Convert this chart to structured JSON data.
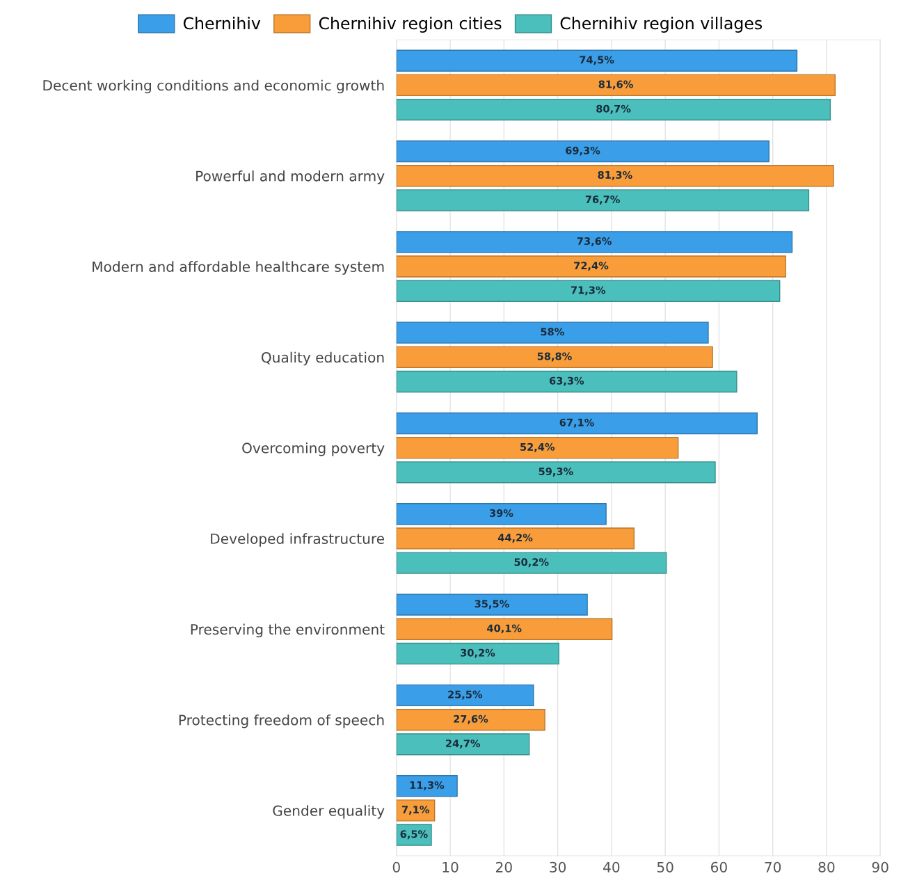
{
  "chart_data": {
    "type": "bar",
    "orientation": "horizontal",
    "categories": [
      "Decent working conditions and economic growth",
      "Powerful and modern army",
      "Modern and affordable healthcare system",
      "Quality education",
      "Overcoming poverty",
      "Developed infrastructure",
      "Preserving the environment",
      "Protecting freedom of speech",
      "Gender equality"
    ],
    "series": [
      {
        "name": "Chernihiv",
        "color": "#3a9fe8",
        "values": [
          74.5,
          69.3,
          73.6,
          58,
          67.1,
          39,
          35.5,
          25.5,
          11.3
        ],
        "value_labels": [
          "74,5%",
          "69,3%",
          "73,6%",
          "58%",
          "67,1%",
          "39%",
          "35,5%",
          "25,5%",
          "11,3%"
        ]
      },
      {
        "name": "Chernihiv region cities",
        "color": "#f99d3a",
        "values": [
          81.6,
          81.3,
          72.4,
          58.8,
          52.4,
          44.2,
          40.1,
          27.6,
          7.1
        ],
        "value_labels": [
          "81,6%",
          "81,3%",
          "72,4%",
          "58,8%",
          "52,4%",
          "44,2%",
          "40,1%",
          "27,6%",
          "7,1%"
        ]
      },
      {
        "name": "Chernihiv region villages",
        "color": "#4bbfbb",
        "values": [
          80.7,
          76.7,
          71.3,
          63.3,
          59.3,
          50.2,
          30.2,
          24.7,
          6.5
        ],
        "value_labels": [
          "80,7%",
          "76,7%",
          "71,3%",
          "63,3%",
          "59,3%",
          "50,2%",
          "30,2%",
          "24,7%",
          "6,5%"
        ]
      }
    ],
    "xlim": [
      0,
      90
    ],
    "xticks": [
      0,
      10,
      20,
      30,
      40,
      50,
      60,
      70,
      80,
      90
    ],
    "grid": "x",
    "legend": "top"
  }
}
